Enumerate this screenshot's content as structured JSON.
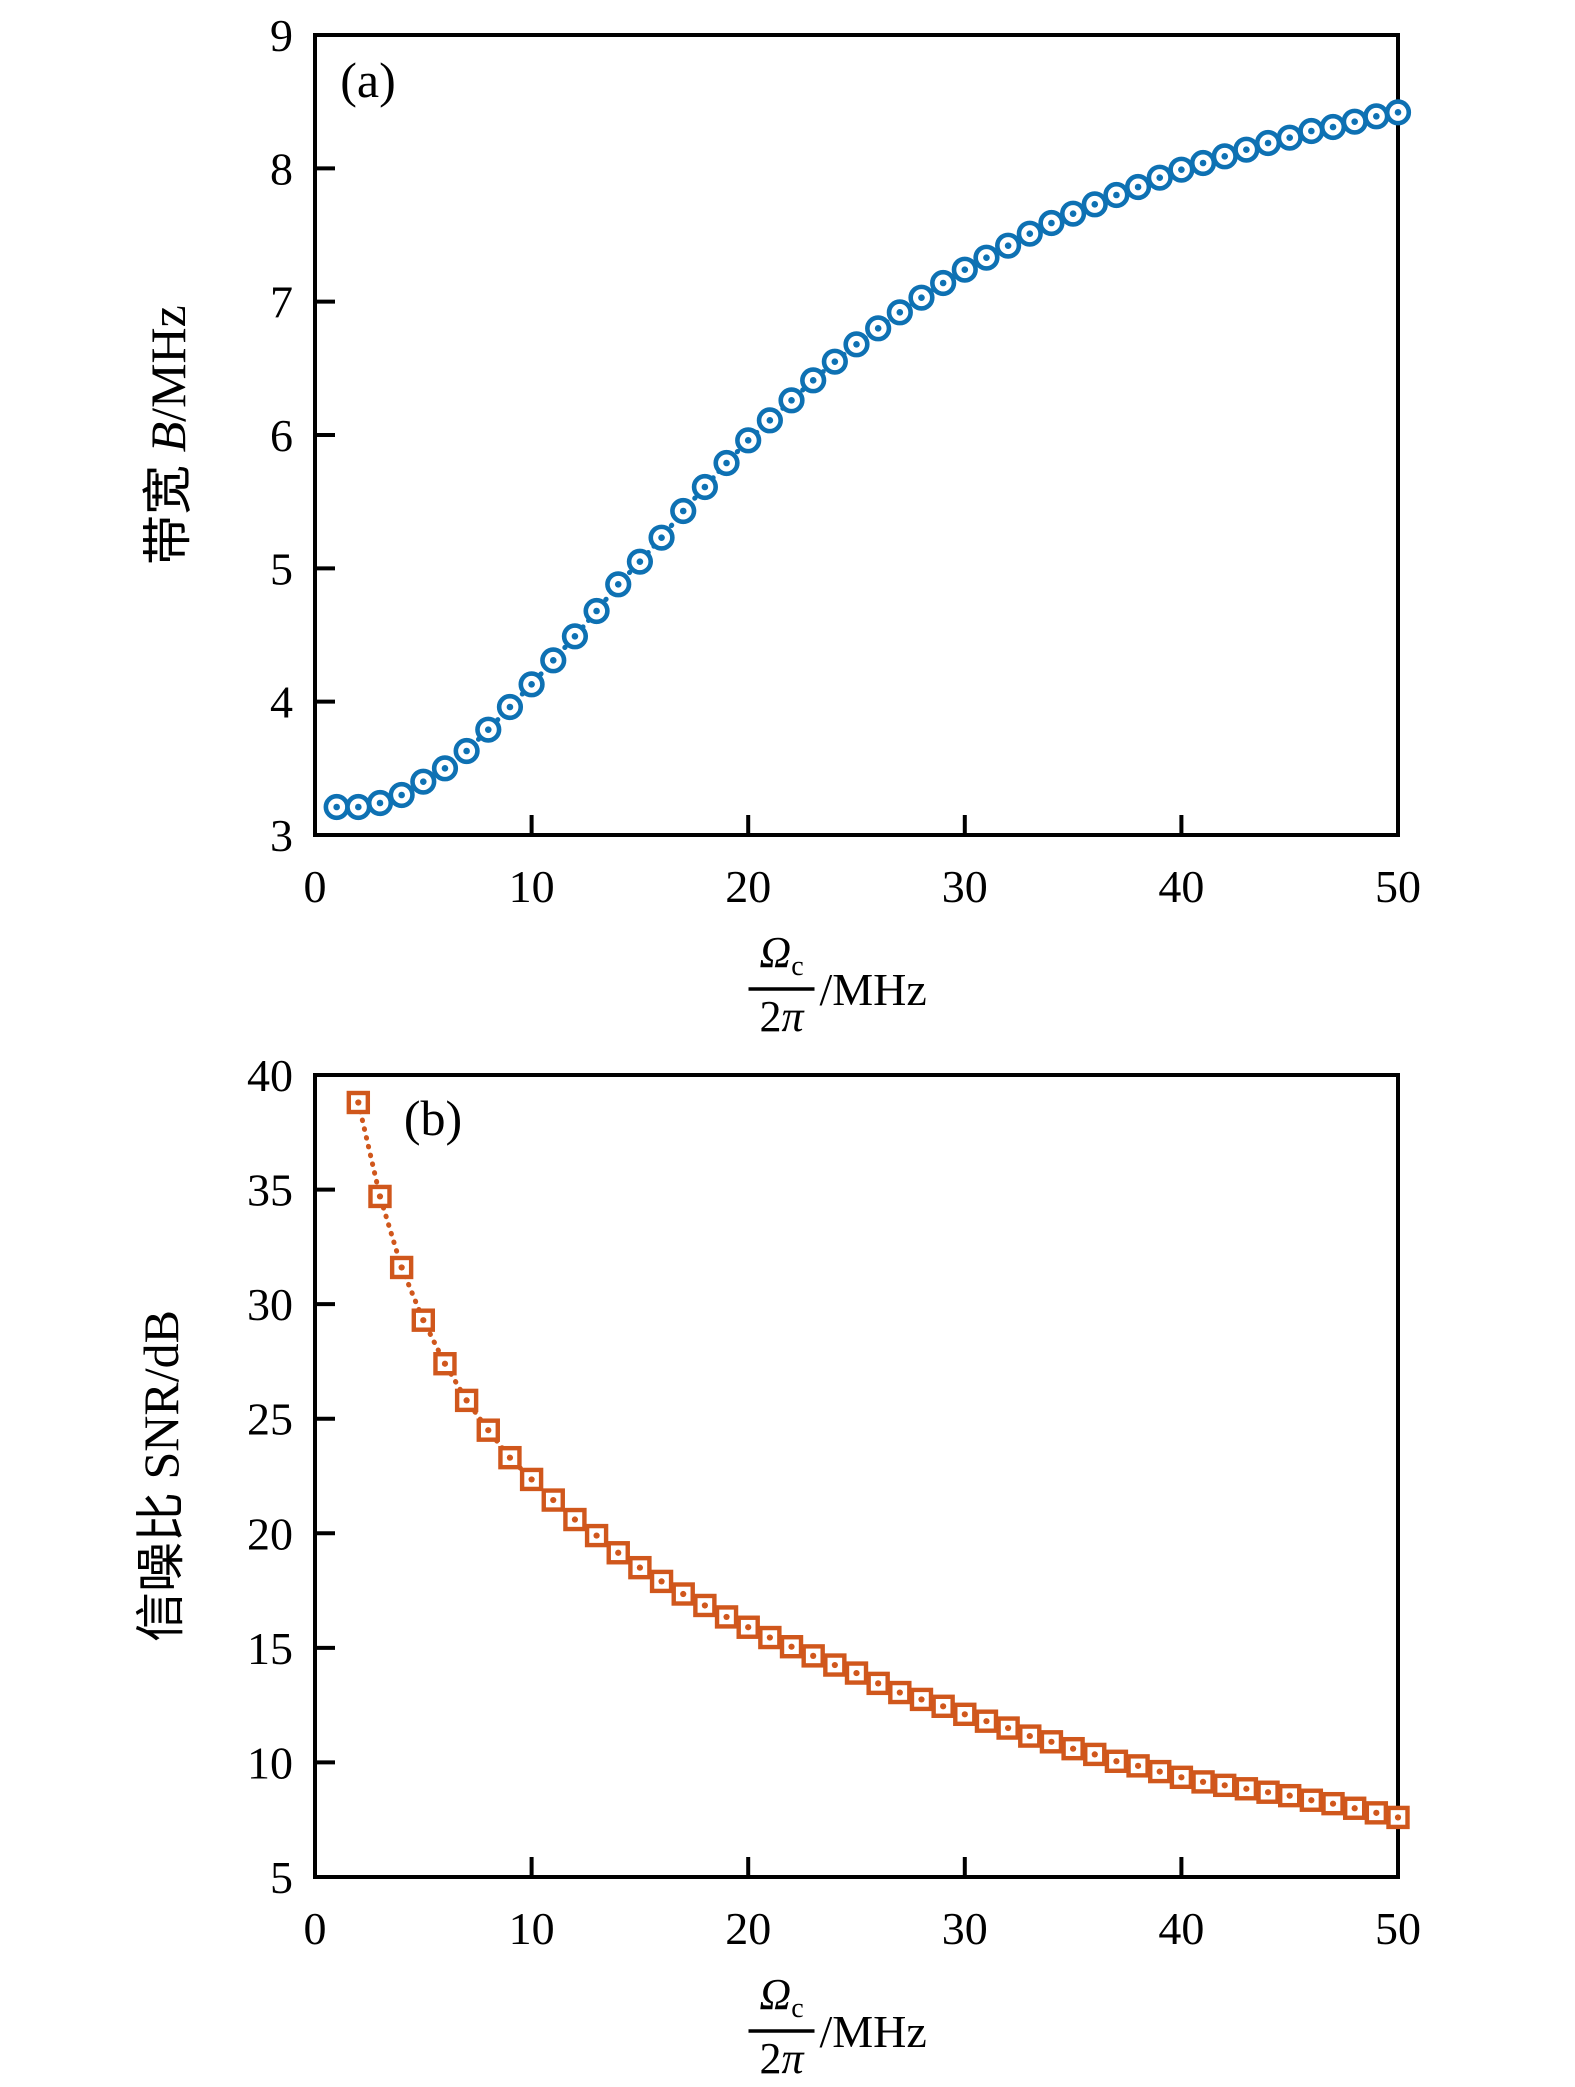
{
  "figure": {
    "background": "#ffffff",
    "text_color": "#000000",
    "frame_color": "#000000",
    "panel_count": 2
  },
  "chart_data": [
    {
      "panel": "a",
      "type": "scatter",
      "tag": "(a)",
      "marker": "circle-dot",
      "line_style": "dotted",
      "color": "#0e71b3",
      "legend": "none",
      "grid": false,
      "xlim": [
        0,
        50
      ],
      "ylim": [
        3,
        9
      ],
      "xticks": [
        0,
        10,
        20,
        30,
        40,
        50
      ],
      "yticks": [
        3,
        4,
        5,
        6,
        7,
        8,
        9
      ],
      "ylabel_parts": [
        {
          "text": "带宽 ",
          "italic": false
        },
        {
          "text": "B",
          "italic": true
        },
        {
          "text": "/MHz",
          "italic": false
        }
      ],
      "xlabel": {
        "num_parts": [
          {
            "text": "Ω",
            "italic": true,
            "sub": false
          },
          {
            "text": "c",
            "italic": false,
            "sub": true
          }
        ],
        "den_parts": [
          {
            "text": "2",
            "italic": false
          },
          {
            "text": "π",
            "italic": true
          }
        ],
        "unit": "/MHz"
      },
      "x": [
        1,
        2,
        3,
        4,
        5,
        6,
        7,
        8,
        9,
        10,
        11,
        12,
        13,
        14,
        15,
        16,
        17,
        18,
        19,
        20,
        21,
        22,
        23,
        24,
        25,
        26,
        27,
        28,
        29,
        30,
        31,
        32,
        33,
        34,
        35,
        36,
        37,
        38,
        39,
        40,
        41,
        42,
        43,
        44,
        45,
        46,
        47,
        48,
        49,
        50
      ],
      "y": [
        3.21,
        3.21,
        3.24,
        3.3,
        3.4,
        3.5,
        3.63,
        3.79,
        3.96,
        4.13,
        4.31,
        4.49,
        4.68,
        4.88,
        5.05,
        5.23,
        5.43,
        5.61,
        5.79,
        5.96,
        6.11,
        6.26,
        6.41,
        6.55,
        6.68,
        6.8,
        6.92,
        7.03,
        7.14,
        7.24,
        7.33,
        7.42,
        7.51,
        7.59,
        7.66,
        7.73,
        7.8,
        7.86,
        7.93,
        7.99,
        8.04,
        8.09,
        8.14,
        8.19,
        8.23,
        8.28,
        8.31,
        8.35,
        8.39,
        8.42
      ]
    },
    {
      "panel": "b",
      "type": "scatter",
      "tag": "(b)",
      "marker": "square-dot",
      "line_style": "dotted",
      "color": "#d0571c",
      "legend": "none",
      "grid": false,
      "xlim": [
        0,
        50
      ],
      "ylim": [
        5,
        40
      ],
      "xticks": [
        0,
        10,
        20,
        30,
        40,
        50
      ],
      "yticks": [
        5,
        10,
        15,
        20,
        25,
        30,
        35,
        40
      ],
      "ylabel_parts": [
        {
          "text": "信噪比 SNR/dB",
          "italic": false
        }
      ],
      "xlabel": {
        "num_parts": [
          {
            "text": "Ω",
            "italic": true,
            "sub": false
          },
          {
            "text": "c",
            "italic": false,
            "sub": true
          }
        ],
        "den_parts": [
          {
            "text": "2",
            "italic": false
          },
          {
            "text": "π",
            "italic": true
          }
        ],
        "unit": "/MHz"
      },
      "x": [
        2,
        3,
        4,
        5,
        6,
        7,
        8,
        9,
        10,
        11,
        12,
        13,
        14,
        15,
        16,
        17,
        18,
        19,
        20,
        21,
        22,
        23,
        24,
        25,
        26,
        27,
        28,
        29,
        30,
        31,
        32,
        33,
        34,
        35,
        36,
        37,
        38,
        39,
        40,
        41,
        42,
        43,
        44,
        45,
        46,
        47,
        48,
        49,
        50
      ],
      "y": [
        38.8,
        34.7,
        31.6,
        29.3,
        27.4,
        25.8,
        24.5,
        23.3,
        22.35,
        21.45,
        20.6,
        19.9,
        19.15,
        18.5,
        17.9,
        17.35,
        16.85,
        16.35,
        15.9,
        15.45,
        15.05,
        14.65,
        14.25,
        13.9,
        13.45,
        13.05,
        12.75,
        12.45,
        12.1,
        11.8,
        11.5,
        11.15,
        10.9,
        10.6,
        10.35,
        10.05,
        9.85,
        9.6,
        9.35,
        9.15,
        9.0,
        8.85,
        8.7,
        8.55,
        8.35,
        8.2,
        8.0,
        7.8,
        7.6
      ]
    }
  ]
}
